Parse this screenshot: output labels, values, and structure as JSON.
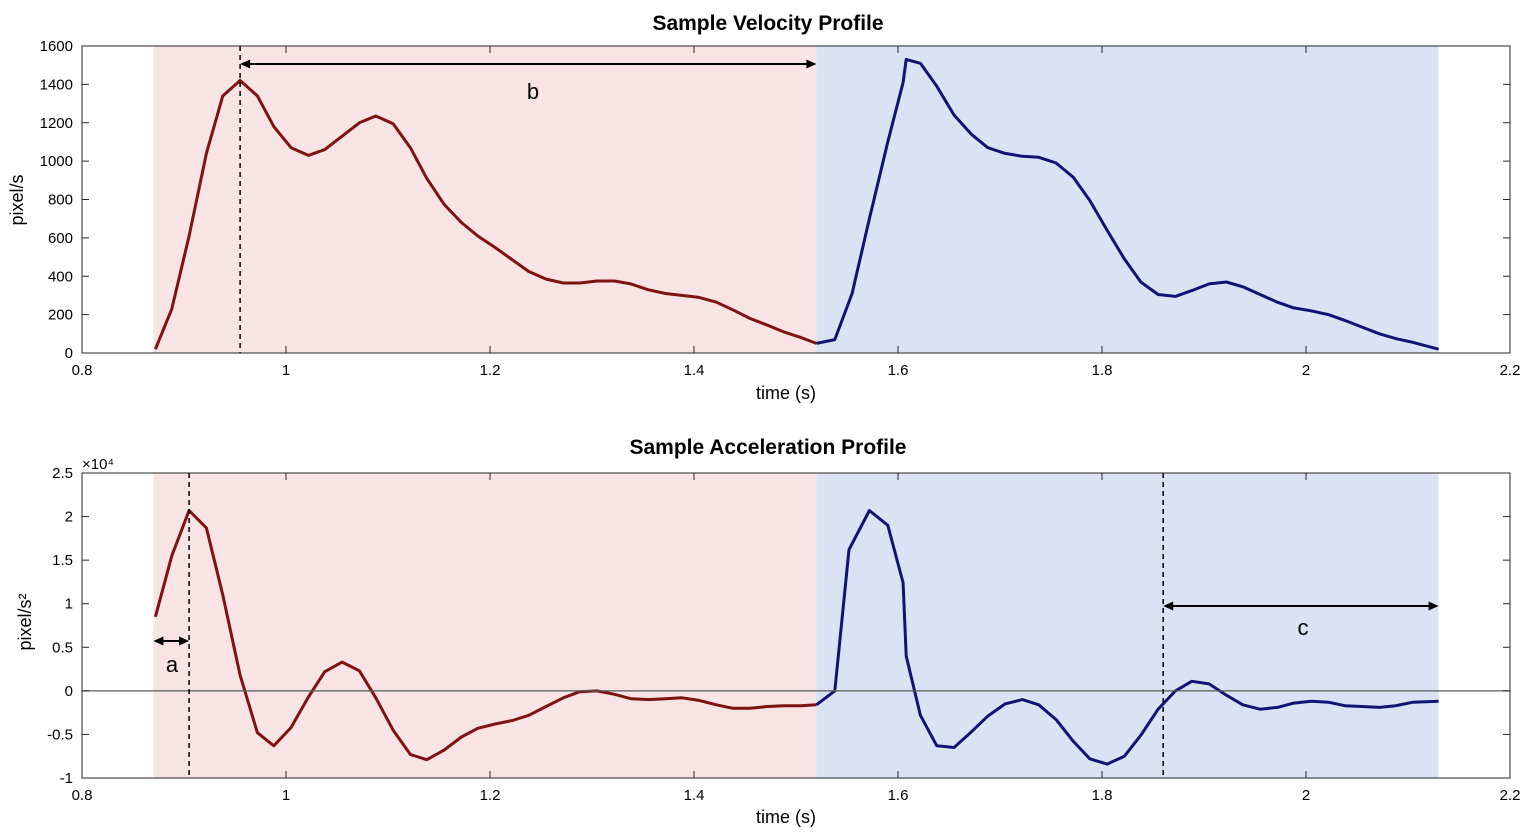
{
  "chart_data": [
    {
      "type": "line",
      "title": "Sample Velocity Profile",
      "xlabel": "time (s)",
      "ylabel": "pixel/s",
      "xlim": [
        0.8,
        2.2
      ],
      "ylim": [
        0,
        1600
      ],
      "xticks": [
        0.8,
        1,
        1.2,
        1.4,
        1.6,
        1.8,
        2,
        2.2
      ],
      "xtick_labels": [
        "0.8",
        "1",
        "1.2",
        "1.4",
        "1.6",
        "1.8",
        "2",
        "2.2"
      ],
      "yticks": [
        0,
        200,
        400,
        600,
        800,
        1000,
        1200,
        1400,
        1600
      ],
      "ytick_labels": [
        "0",
        "200",
        "400",
        "600",
        "800",
        "1000",
        "1200",
        "1400",
        "1600"
      ],
      "grid": false,
      "regions": [
        {
          "x0": 0.87,
          "x1": 1.52,
          "color": "#f8e4e5"
        },
        {
          "x0": 1.52,
          "x1": 2.13,
          "color": "#dae3f3"
        }
      ],
      "series": [
        {
          "color": "#7f1212",
          "x": [
            0.872,
            0.888,
            0.905,
            0.922,
            0.938,
            0.955,
            0.972,
            0.988,
            1.005,
            1.022,
            1.038,
            1.055,
            1.072,
            1.088,
            1.105,
            1.122,
            1.138,
            1.155,
            1.172,
            1.188,
            1.205,
            1.222,
            1.238,
            1.255,
            1.272,
            1.288,
            1.305,
            1.322,
            1.338,
            1.355,
            1.372,
            1.388,
            1.405,
            1.422,
            1.438,
            1.455,
            1.472,
            1.488,
            1.505,
            1.52
          ],
          "y": [
            20,
            230,
            610,
            1040,
            1340,
            1420,
            1340,
            1180,
            1070,
            1030,
            1060,
            1130,
            1200,
            1235,
            1195,
            1070,
            910,
            775,
            680,
            610,
            550,
            485,
            425,
            385,
            365,
            365,
            375,
            375,
            360,
            330,
            310,
            300,
            290,
            265,
            225,
            180,
            145,
            110,
            80,
            50
          ]
        },
        {
          "color": "#101573",
          "x": [
            1.52,
            1.538,
            1.555,
            1.572,
            1.59,
            1.605,
            1.608,
            1.622,
            1.638,
            1.655,
            1.672,
            1.688,
            1.705,
            1.722,
            1.738,
            1.755,
            1.772,
            1.788,
            1.805,
            1.822,
            1.838,
            1.855,
            1.872,
            1.888,
            1.905,
            1.922,
            1.938,
            1.955,
            1.972,
            1.988,
            2.005,
            2.022,
            2.038,
            2.055,
            2.072,
            2.088,
            2.105,
            2.13
          ],
          "y": [
            50,
            70,
            310,
            700,
            1100,
            1410,
            1530,
            1510,
            1390,
            1240,
            1140,
            1070,
            1040,
            1025,
            1020,
            990,
            915,
            795,
            640,
            490,
            370,
            305,
            295,
            325,
            360,
            370,
            345,
            305,
            265,
            235,
            220,
            200,
            170,
            135,
            100,
            75,
            55,
            20
          ]
        }
      ],
      "annotations": [
        {
          "text": "b",
          "x": 1.24,
          "y": 1360
        }
      ]
    },
    {
      "type": "line",
      "title": "Sample Acceleration Profile",
      "xlabel": "time (s)",
      "ylabel": "pixel/s²",
      "y_exponent_label": "×10⁴",
      "xlim": [
        0.8,
        2.2
      ],
      "ylim": [
        -1,
        2.5
      ],
      "xticks": [
        0.8,
        1,
        1.2,
        1.4,
        1.6,
        1.8,
        2,
        2.2
      ],
      "xtick_labels": [
        "0.8",
        "1",
        "1.2",
        "1.4",
        "1.6",
        "1.8",
        "2",
        "2.2"
      ],
      "yticks": [
        -1,
        -0.5,
        0,
        0.5,
        1,
        1.5,
        2,
        2.5
      ],
      "ytick_labels": [
        "-1",
        "-0.5",
        "0",
        "0.5",
        "1",
        "1.5",
        "2",
        "2.5"
      ],
      "grid": false,
      "regions": [
        {
          "x0": 0.87,
          "x1": 1.52,
          "color": "#f8e4e5"
        },
        {
          "x0": 1.52,
          "x1": 2.13,
          "color": "#dae3f3"
        }
      ],
      "series": [
        {
          "color": "#7f1212",
          "x": [
            0.872,
            0.888,
            0.905,
            0.922,
            0.938,
            0.955,
            0.972,
            0.988,
            1.005,
            1.022,
            1.038,
            1.055,
            1.072,
            1.088,
            1.105,
            1.122,
            1.138,
            1.155,
            1.172,
            1.188,
            1.205,
            1.222,
            1.238,
            1.255,
            1.272,
            1.288,
            1.305,
            1.322,
            1.338,
            1.355,
            1.372,
            1.388,
            1.405,
            1.422,
            1.438,
            1.455,
            1.472,
            1.488,
            1.505,
            1.52
          ],
          "y": [
            0.85,
            1.55,
            2.07,
            1.87,
            1.1,
            0.18,
            -0.48,
            -0.63,
            -0.42,
            -0.07,
            0.22,
            0.33,
            0.23,
            -0.08,
            -0.45,
            -0.73,
            -0.79,
            -0.68,
            -0.53,
            -0.43,
            -0.38,
            -0.34,
            -0.28,
            -0.18,
            -0.08,
            -0.01,
            0.0,
            -0.04,
            -0.09,
            -0.1,
            -0.09,
            -0.08,
            -0.11,
            -0.16,
            -0.2,
            -0.2,
            -0.18,
            -0.17,
            -0.17,
            -0.16
          ]
        },
        {
          "color": "#101573",
          "x": [
            1.52,
            1.538,
            1.552,
            1.572,
            1.59,
            1.605,
            1.608,
            1.622,
            1.638,
            1.655,
            1.672,
            1.688,
            1.705,
            1.722,
            1.738,
            1.755,
            1.772,
            1.788,
            1.805,
            1.822,
            1.838,
            1.855,
            1.872,
            1.888,
            1.905,
            1.922,
            1.938,
            1.955,
            1.972,
            1.988,
            2.005,
            2.022,
            2.038,
            2.055,
            2.072,
            2.088,
            2.105,
            2.13
          ],
          "y": [
            -0.16,
            0.0,
            1.62,
            2.07,
            1.9,
            1.24,
            0.4,
            -0.28,
            -0.63,
            -0.65,
            -0.47,
            -0.29,
            -0.15,
            -0.1,
            -0.16,
            -0.33,
            -0.58,
            -0.78,
            -0.84,
            -0.75,
            -0.51,
            -0.21,
            0.0,
            0.11,
            0.08,
            -0.05,
            -0.16,
            -0.21,
            -0.19,
            -0.14,
            -0.12,
            -0.13,
            -0.17,
            -0.18,
            -0.19,
            -0.17,
            -0.13,
            -0.12
          ]
        }
      ],
      "annotations": [
        {
          "text": "a",
          "x": 0.885,
          "y": 0.12
        },
        {
          "text": "c",
          "x": 2.0,
          "y": 0.9
        }
      ]
    }
  ]
}
